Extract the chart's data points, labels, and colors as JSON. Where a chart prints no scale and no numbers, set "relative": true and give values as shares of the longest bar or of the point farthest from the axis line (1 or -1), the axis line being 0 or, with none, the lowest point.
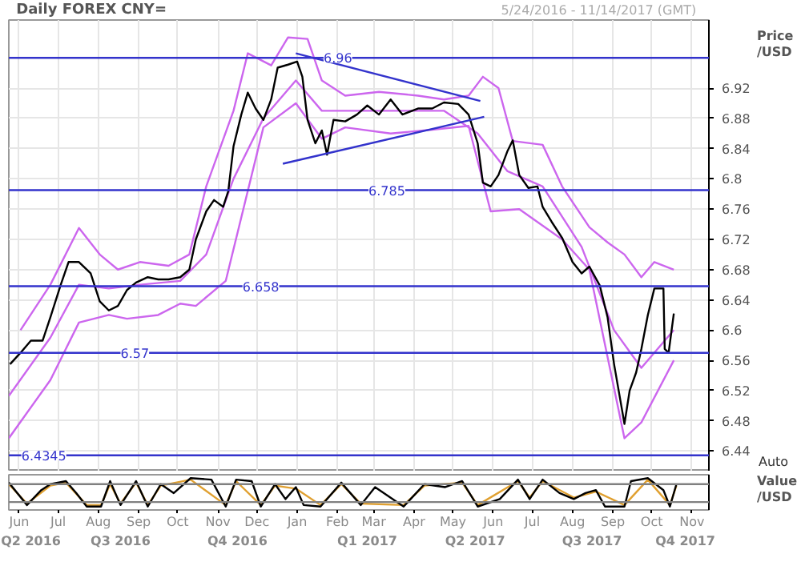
{
  "chart_data": [
    {
      "type": "line",
      "title": "Daily FOREX CNY=",
      "ylabel": "Price /USD",
      "annotations": [
        "5/24/2016 - 11/14/2017 (GMT)",
        "Auto"
      ],
      "xlim": [
        "2016-05-24",
        "2017-11-14"
      ],
      "ylim": [
        6.413,
        7.01
      ],
      "xticks": [
        {
          "value": "2016-06-01",
          "label": null
        },
        {
          "value": "2016-07-01",
          "label": null
        },
        {
          "value": "2016-08-01",
          "label": null
        },
        {
          "value": "2016-09-01",
          "label": null
        },
        {
          "value": "2016-10-01",
          "label": null
        },
        {
          "value": "2016-11-01",
          "label": null
        },
        {
          "value": "2016-12-01",
          "label": null
        },
        {
          "value": "2017-01-01",
          "label": null
        },
        {
          "value": "2017-02-01",
          "label": null
        },
        {
          "value": "2017-03-01",
          "label": null
        },
        {
          "value": "2017-04-01",
          "label": null
        },
        {
          "value": "2017-05-01",
          "label": null
        },
        {
          "value": "2017-06-01",
          "label": null
        },
        {
          "value": "2017-07-01",
          "label": null
        },
        {
          "value": "2017-08-01",
          "label": null
        },
        {
          "value": "2017-09-01",
          "label": null
        },
        {
          "value": "2017-10-01",
          "label": null
        },
        {
          "value": "2017-11-01",
          "label": null
        }
      ],
      "yticks": [
        6.44,
        6.48,
        6.52,
        6.56,
        6.6,
        6.64,
        6.68,
        6.72,
        6.76,
        6.8,
        6.84,
        6.88,
        6.92
      ],
      "tick_labels": "y",
      "grid": true,
      "ref_lines": [
        {
          "axis": "y",
          "value": 6.96,
          "label": "6.96",
          "color": "#3333cc"
        },
        {
          "axis": "y",
          "value": 6.785,
          "label": "6.785",
          "color": "#3333cc"
        },
        {
          "axis": "y",
          "value": 6.658,
          "label": "6.658",
          "color": "#3333cc"
        },
        {
          "axis": "y",
          "value": 6.57,
          "label": "6.57",
          "color": "#3333cc"
        },
        {
          "axis": "y",
          "value": 6.4345,
          "label": "6.4345",
          "color": "#3333cc"
        }
      ],
      "series": [
        {
          "color": "#cc66ee",
          "x": [
            "2016-06-02",
            "2016-06-25",
            "2016-07-17",
            "2016-08-02",
            "2016-08-16",
            "2016-09-02",
            "2016-09-24",
            "2016-10-10",
            "2016-10-23",
            "2016-11-13",
            "2016-11-24",
            "2016-12-12",
            "2016-12-25",
            "2017-01-09",
            "2017-01-20",
            "2017-02-07",
            "2017-03-05",
            "2017-04-04",
            "2017-04-24",
            "2017-05-13",
            "2017-05-24",
            "2017-06-05",
            "2017-06-16",
            "2017-07-09",
            "2017-07-24",
            "2017-08-14",
            "2017-08-28",
            "2017-09-10",
            "2017-09-23",
            "2017-10-03",
            "2017-10-18"
          ],
          "values": [
            6.6,
            6.66,
            6.735,
            6.7,
            6.68,
            6.69,
            6.685,
            6.7,
            6.79,
            6.89,
            6.966,
            6.95,
            6.987,
            6.985,
            6.93,
            6.91,
            6.915,
            6.91,
            6.905,
            6.91,
            6.935,
            6.92,
            6.85,
            6.845,
            6.79,
            6.736,
            6.716,
            6.7,
            6.67,
            6.69,
            6.68
          ]
        },
        {
          "color": "#cc66ee",
          "x": [
            "2016-05-24",
            "2016-06-25",
            "2016-07-17",
            "2016-08-09",
            "2016-09-02",
            "2016-10-03",
            "2016-10-23",
            "2016-11-13",
            "2016-12-06",
            "2016-12-31",
            "2017-01-20",
            "2017-02-16",
            "2017-03-23",
            "2017-04-24",
            "2017-05-20",
            "2017-06-12",
            "2017-07-09",
            "2017-08-08",
            "2017-09-02",
            "2017-09-23",
            "2017-10-18"
          ],
          "values": [
            6.513,
            6.59,
            6.66,
            6.655,
            6.66,
            6.665,
            6.7,
            6.8,
            6.88,
            6.93,
            6.89,
            6.89,
            6.89,
            6.89,
            6.86,
            6.81,
            6.79,
            6.71,
            6.6,
            6.55,
            6.6
          ]
        },
        {
          "color": "#cc66ee",
          "x": [
            "2016-05-24",
            "2016-06-25",
            "2016-07-17",
            "2016-08-09",
            "2016-08-23",
            "2016-09-16",
            "2016-10-03",
            "2016-10-15",
            "2016-11-07",
            "2016-12-06",
            "2016-12-31",
            "2017-01-20",
            "2017-02-07",
            "2017-03-14",
            "2017-04-15",
            "2017-05-13",
            "2017-05-30",
            "2017-06-21",
            "2017-07-24",
            "2017-08-14",
            "2017-09-10",
            "2017-09-23",
            "2017-10-18"
          ],
          "values": [
            6.457,
            6.534,
            6.61,
            6.62,
            6.615,
            6.62,
            6.635,
            6.632,
            6.665,
            6.868,
            6.9,
            6.853,
            6.868,
            6.86,
            6.865,
            6.87,
            6.757,
            6.76,
            6.72,
            6.68,
            6.457,
            6.478,
            6.56
          ]
        },
        {
          "color": "#000000",
          "x": [
            "2016-05-25",
            "2016-06-02",
            "2016-06-10",
            "2016-06-19",
            "2016-06-25",
            "2016-07-03",
            "2016-07-09",
            "2016-07-17",
            "2016-07-26",
            "2016-08-02",
            "2016-08-09",
            "2016-08-16",
            "2016-08-23",
            "2016-08-30",
            "2016-09-08",
            "2016-09-16",
            "2016-09-24",
            "2016-10-03",
            "2016-10-10",
            "2016-10-15",
            "2016-10-23",
            "2016-10-29",
            "2016-11-05",
            "2016-11-09",
            "2016-11-13",
            "2016-11-19",
            "2016-11-24",
            "2016-11-30",
            "2016-12-06",
            "2016-12-12",
            "2016-12-17",
            "2016-12-25",
            "2017-01-01",
            "2017-01-05",
            "2017-01-09",
            "2017-01-15",
            "2017-01-20",
            "2017-01-24",
            "2017-01-29",
            "2017-02-07",
            "2017-02-16",
            "2017-02-24",
            "2017-03-05",
            "2017-03-14",
            "2017-03-23",
            "2017-04-04",
            "2017-04-15",
            "2017-04-24",
            "2017-05-05",
            "2017-05-13",
            "2017-05-20",
            "2017-05-24",
            "2017-05-30",
            "2017-06-05",
            "2017-06-12",
            "2017-06-16",
            "2017-06-21",
            "2017-06-28",
            "2017-07-05",
            "2017-07-09",
            "2017-07-16",
            "2017-07-24",
            "2017-08-01",
            "2017-08-08",
            "2017-08-14",
            "2017-08-22",
            "2017-08-28",
            "2017-09-02",
            "2017-09-10",
            "2017-09-14",
            "2017-09-19",
            "2017-09-23",
            "2017-09-28",
            "2017-10-03",
            "2017-10-10",
            "2017-10-11",
            "2017-10-14",
            "2017-10-18"
          ],
          "values": [
            6.555,
            6.57,
            6.586,
            6.586,
            6.617,
            6.66,
            6.69,
            6.69,
            6.675,
            6.638,
            6.626,
            6.632,
            6.653,
            6.663,
            6.67,
            6.667,
            6.667,
            6.67,
            6.68,
            6.72,
            6.757,
            6.772,
            6.763,
            6.784,
            6.843,
            6.885,
            6.914,
            6.893,
            6.878,
            6.905,
            6.947,
            6.951,
            6.955,
            6.935,
            6.878,
            6.847,
            6.864,
            6.832,
            6.878,
            6.876,
            6.885,
            6.897,
            6.885,
            6.905,
            6.885,
            6.893,
            6.893,
            6.901,
            6.899,
            6.885,
            6.847,
            6.795,
            6.79,
            6.805,
            6.837,
            6.851,
            6.805,
            6.788,
            6.79,
            6.763,
            6.743,
            6.722,
            6.69,
            6.675,
            6.684,
            6.659,
            6.617,
            6.555,
            6.476,
            6.52,
            6.544,
            6.575,
            6.62,
            6.655,
            6.655,
            6.575,
            6.57,
            6.622
          ]
        },
        {
          "color": "#3333cc",
          "x": [
            "2016-12-31",
            "2017-05-22"
          ],
          "values": [
            6.966,
            6.903
          ]
        },
        {
          "color": "#3333cc",
          "x": [
            "2016-12-21",
            "2017-05-25"
          ],
          "values": [
            6.82,
            6.882
          ]
        }
      ]
    },
    {
      "type": "line",
      "ylabel": "Value /USD",
      "relative": true,
      "tick_labels": "x",
      "xlim": [
        "2016-05-24",
        "2017-11-14"
      ],
      "xticks": [
        {
          "value": "2016-06-01",
          "label": "Jun"
        },
        {
          "value": "2016-07-01",
          "label": "Jul"
        },
        {
          "value": "2016-08-01",
          "label": "Aug"
        },
        {
          "value": "2016-09-01",
          "label": "Sep"
        },
        {
          "value": "2016-10-01",
          "label": "Oct"
        },
        {
          "value": "2016-11-01",
          "label": "Nov"
        },
        {
          "value": "2016-12-01",
          "label": "Dec"
        },
        {
          "value": "2017-01-01",
          "label": "Jan"
        },
        {
          "value": "2017-02-01",
          "label": "Feb"
        },
        {
          "value": "2017-03-01",
          "label": "Mar"
        },
        {
          "value": "2017-04-01",
          "label": "Apr"
        },
        {
          "value": "2017-05-01",
          "label": "May"
        },
        {
          "value": "2017-06-01",
          "label": "Jun"
        },
        {
          "value": "2017-07-01",
          "label": "Jul"
        },
        {
          "value": "2017-08-01",
          "label": "Aug"
        },
        {
          "value": "2017-09-01",
          "label": "Sep"
        },
        {
          "value": "2017-10-01",
          "label": "Oct"
        },
        {
          "value": "2017-11-01",
          "label": "Nov"
        }
      ],
      "x2lim": [
        "2016-05-24",
        "2017-11-14"
      ],
      "x2ticks": [
        {
          "value": "2016-06-10",
          "label": "Q2 2016"
        },
        {
          "value": "2016-07-01",
          "label": null
        },
        {
          "value": "2016-08-18",
          "label": "Q3 2016"
        },
        {
          "value": "2016-10-01",
          "label": null
        },
        {
          "value": "2016-11-16",
          "label": "Q4 2016"
        },
        {
          "value": "2017-01-01",
          "label": null
        },
        {
          "value": "2017-02-24",
          "label": "Q1 2017"
        },
        {
          "value": "2017-04-01",
          "label": null
        },
        {
          "value": "2017-05-18",
          "label": "Q2 2017"
        },
        {
          "value": "2017-07-01",
          "label": null
        },
        {
          "value": "2017-08-16",
          "label": "Q3 2017"
        },
        {
          "value": "2017-10-01",
          "label": null
        },
        {
          "value": "2017-10-27",
          "label": "Q4 2017"
        }
      ],
      "ref_lines": [
        {
          "axis": "y",
          "value": 0.8,
          "color": "#808080"
        },
        {
          "axis": "y",
          "value": 0.2,
          "color": "#808080"
        }
      ],
      "series": [
        {
          "color": "#e0a030",
          "x": [
            "2016-05-24",
            "2016-06-07",
            "2016-06-25",
            "2016-07-07",
            "2016-07-23",
            "2016-08-03",
            "2016-08-10",
            "2016-08-18",
            "2016-08-30",
            "2016-09-08",
            "2016-09-18",
            "2016-10-11",
            "2016-11-07",
            "2016-11-15",
            "2016-12-04",
            "2016-12-15",
            "2016-12-31",
            "2017-01-19",
            "2017-02-04",
            "2017-02-19",
            "2017-03-24",
            "2017-04-09",
            "2017-05-08",
            "2017-05-20",
            "2017-06-20",
            "2017-06-29",
            "2017-07-09",
            "2017-08-02",
            "2017-08-19",
            "2017-09-10",
            "2017-09-28",
            "2017-10-15",
            "2017-10-20"
          ],
          "values": [
            0.8,
            0.15,
            0.75,
            0.85,
            0.1,
            0.1,
            0.8,
            0.15,
            0.85,
            0.1,
            0.75,
            0.95,
            0.1,
            0.9,
            0.1,
            0.75,
            0.65,
            0.1,
            0.8,
            0.15,
            0.1,
            0.75,
            0.85,
            0.1,
            0.9,
            0.35,
            0.9,
            0.35,
            0.55,
            0.1,
            0.95,
            0.1,
            0.75
          ]
        },
        {
          "color": "#000000",
          "x": [
            "2016-05-24",
            "2016-06-07",
            "2016-06-18",
            "2016-06-25",
            "2016-07-07",
            "2016-07-15",
            "2016-07-23",
            "2016-08-03",
            "2016-08-10",
            "2016-08-18",
            "2016-08-30",
            "2016-09-08",
            "2016-09-18",
            "2016-09-28",
            "2016-10-11",
            "2016-10-27",
            "2016-11-07",
            "2016-11-15",
            "2016-11-27",
            "2016-12-04",
            "2016-12-15",
            "2016-12-23",
            "2016-12-31",
            "2017-01-06",
            "2017-01-19",
            "2017-02-04",
            "2017-02-19",
            "2017-03-02",
            "2017-03-24",
            "2017-04-09",
            "2017-04-25",
            "2017-05-08",
            "2017-05-20",
            "2017-06-06",
            "2017-06-20",
            "2017-06-29",
            "2017-07-09",
            "2017-07-22",
            "2017-08-02",
            "2017-08-11",
            "2017-08-19",
            "2017-08-26",
            "2017-09-10",
            "2017-09-15",
            "2017-09-28",
            "2017-10-10",
            "2017-10-15",
            "2017-10-20"
          ],
          "values": [
            0.85,
            0.1,
            0.6,
            0.8,
            0.9,
            0.5,
            0.05,
            0.05,
            0.9,
            0.1,
            0.9,
            0.05,
            0.8,
            0.5,
            1,
            0.95,
            0.05,
            0.95,
            0.9,
            0.05,
            0.8,
            0.3,
            0.7,
            0.1,
            0.05,
            0.85,
            0.1,
            0.7,
            0.05,
            0.8,
            0.7,
            0.9,
            0.05,
            0.3,
            0.95,
            0.3,
            0.95,
            0.5,
            0.3,
            0.5,
            0.6,
            0.05,
            0.05,
            0.9,
            1,
            0.6,
            0.05,
            0.8
          ]
        }
      ]
    }
  ]
}
